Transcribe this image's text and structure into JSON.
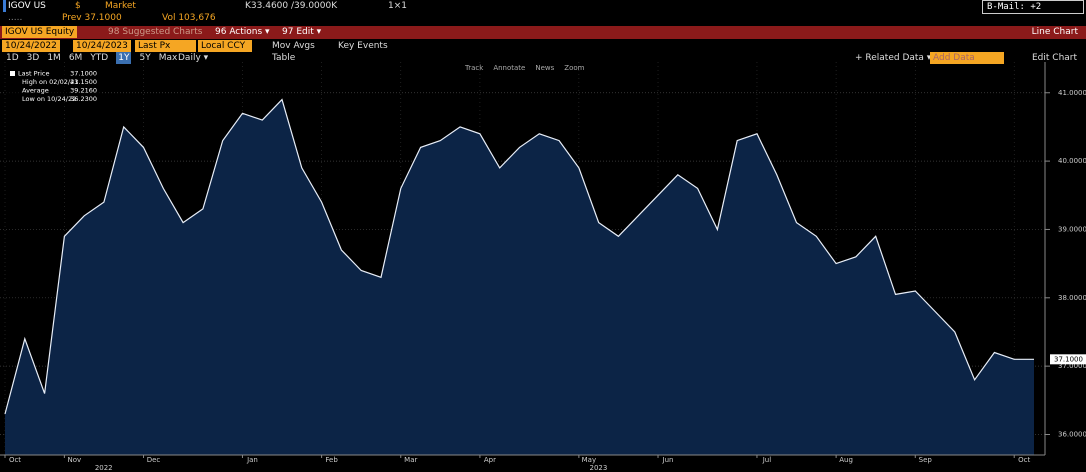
{
  "header": {
    "ticker": "IGOV US",
    "currency": "$",
    "market": "Market",
    "quote": "K33.4600 /39.0000K",
    "size": "1×1",
    "mail": "B-Mail: +2",
    "prev": "Prev 37.1000",
    "volume": "Vol 103,676",
    "dots": "....."
  },
  "menu": {
    "security": "IGOV US Equity",
    "suggested": "98 Suggested Charts",
    "actions": "96 Actions ▾",
    "edit": "97 Edit ▾",
    "view": "Line Chart"
  },
  "controls": {
    "start": "10/24/2022",
    "end": "10/24/2023",
    "field": "Last Px",
    "ccy": "Local CCY",
    "mov_avgs": "Mov Avgs",
    "key_events": "Key Events",
    "ranges": [
      "1D",
      "3D",
      "1M",
      "6M",
      "YTD",
      "1Y",
      "5Y",
      "Max"
    ],
    "period": "Daily ▾",
    "table": "Table",
    "related": "+ Related Data ▾",
    "add_data": "Add Data",
    "edit_chart": "Edit Chart",
    "tools": [
      "Track",
      "Annotate",
      "News",
      "Zoom"
    ]
  },
  "chart_data": {
    "type": "area",
    "legend": [
      [
        "Last Price",
        "37.1000"
      ],
      [
        "High on 02/02/23",
        "41.1500"
      ],
      [
        "Average",
        "39.2160"
      ],
      [
        "Low on 10/24/22",
        "36.2300"
      ]
    ],
    "categories": [
      "Oct",
      null,
      null,
      "Nov",
      null,
      null,
      null,
      "Dec",
      null,
      null,
      null,
      null,
      "Jan",
      null,
      null,
      null,
      "Feb",
      null,
      null,
      null,
      "Mar",
      null,
      null,
      null,
      "Apr",
      null,
      null,
      null,
      null,
      "May",
      null,
      null,
      null,
      "Jun",
      null,
      null,
      null,
      null,
      "Jul",
      null,
      null,
      null,
      "Aug",
      null,
      null,
      null,
      "Sep",
      null,
      null,
      null,
      null,
      "Oct",
      null
    ],
    "years": [
      "2022",
      "2023"
    ],
    "values": [
      36.3,
      37.4,
      36.6,
      38.9,
      39.2,
      39.4,
      40.5,
      40.2,
      39.6,
      39.1,
      39.3,
      40.3,
      40.7,
      40.6,
      40.9,
      39.9,
      39.4,
      38.7,
      38.4,
      38.3,
      39.6,
      40.2,
      40.3,
      40.5,
      40.4,
      39.9,
      40.2,
      40.4,
      40.3,
      39.9,
      39.1,
      38.9,
      39.2,
      39.5,
      39.8,
      39.6,
      39.0,
      40.3,
      40.4,
      39.8,
      39.1,
      38.9,
      38.5,
      38.6,
      38.9,
      38.05,
      38.1,
      37.8,
      37.5,
      36.8,
      37.2,
      37.1,
      37.1
    ],
    "color": "#e8eef8",
    "fill": "#0c2446",
    "ylim": [
      35.7,
      41.45
    ],
    "yticks": [
      {
        "value": 36,
        "label": "36.0000"
      },
      {
        "value": 37,
        "label": "37.0000"
      },
      {
        "value": 38,
        "label": "38.0000"
      },
      {
        "value": 39,
        "label": "39.0000"
      },
      {
        "value": 40,
        "label": "40.0000"
      },
      {
        "value": 41,
        "label": "41.0000"
      }
    ],
    "last_tag": {
      "value": 37.1,
      "label": "37.1000"
    },
    "grid": true
  }
}
